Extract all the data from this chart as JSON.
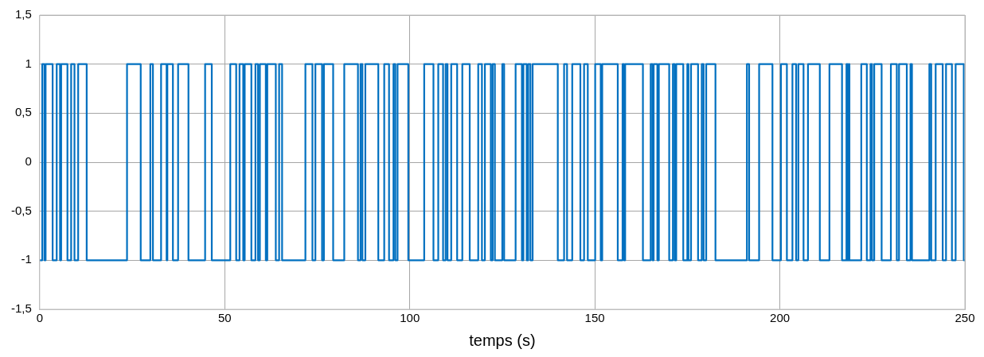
{
  "chart_data": {
    "type": "step",
    "xlabel": "temps (s)",
    "x": [
      0,
      0.7,
      1.3,
      1.6,
      3.5,
      4.6,
      5.5,
      5.8,
      7.5,
      8.5,
      9.4,
      10.4,
      12.7,
      23.6,
      27.3,
      29.9,
      30.6,
      32.8,
      34.3,
      34.5,
      36.0,
      37.4,
      40.2,
      44.7,
      46.5,
      51.5,
      53.1,
      54.0,
      55.0,
      55.4,
      57.2,
      58.3,
      59.0,
      59.5,
      61.1,
      61.5,
      63.8,
      64.7,
      65.5,
      71.8,
      73.7,
      74.5,
      76.3,
      76.8,
      79.3,
      82.3,
      86.0,
      86.7,
      87.2,
      88.0,
      91.5,
      93.1,
      94.4,
      95.6,
      96.1,
      96.7,
      99.6,
      103.9,
      106.4,
      107.7,
      109.0,
      109.7,
      110.2,
      111.2,
      112.8,
      114.2,
      116.2,
      118.5,
      119.5,
      120.3,
      121.9,
      122.4,
      123.0,
      125.0,
      125.5,
      128.6,
      130.3,
      130.7,
      131.6,
      132.0,
      132.6,
      133.2,
      140.0,
      141.7,
      142.5,
      143.9,
      146.1,
      147.1,
      148.1,
      150.1,
      151.6,
      152.0,
      156.2,
      157.5,
      157.9,
      158.2,
      163.0,
      165.1,
      165.6,
      165.9,
      166.9,
      167.3,
      170.1,
      171.1,
      171.6,
      172.0,
      173.9,
      175.0,
      175.3,
      176.0,
      177.9,
      178.9,
      179.4,
      180.1,
      182.6,
      191.1,
      191.7,
      194.4,
      198.0,
      200.3,
      201.9,
      203.4,
      204.4,
      205.0,
      206.4,
      207.6,
      210.8,
      213.4,
      216.8,
      218.0,
      218.3,
      218.6,
      218.8,
      222.0,
      223.5,
      224.5,
      224.9,
      225.5,
      227.5,
      230.0,
      231.6,
      232.2,
      234.3,
      235.3,
      235.7,
      240.4,
      240.9,
      242.1,
      244.0,
      244.9,
      246.5,
      247.5,
      249.7,
      250
    ],
    "values": [
      -1,
      1,
      -1,
      1,
      -1,
      1,
      -1,
      1,
      -1,
      1,
      -1,
      1,
      -1,
      1,
      -1,
      1,
      -1,
      1,
      -1,
      1,
      -1,
      1,
      -1,
      1,
      -1,
      1,
      -1,
      1,
      -1,
      1,
      -1,
      1,
      -1,
      1,
      -1,
      1,
      -1,
      1,
      -1,
      1,
      -1,
      1,
      -1,
      1,
      -1,
      1,
      -1,
      1,
      -1,
      1,
      -1,
      1,
      -1,
      1,
      -1,
      1,
      -1,
      1,
      -1,
      1,
      -1,
      1,
      -1,
      1,
      -1,
      1,
      -1,
      1,
      -1,
      1,
      -1,
      1,
      -1,
      1,
      -1,
      1,
      -1,
      1,
      -1,
      1,
      -1,
      1,
      -1,
      1,
      -1,
      1,
      -1,
      1,
      -1,
      1,
      -1,
      1,
      -1,
      1,
      -1,
      1,
      -1,
      1,
      -1,
      1,
      -1,
      1,
      -1,
      1,
      -1,
      1,
      -1,
      1,
      -1,
      1,
      -1,
      1,
      -1,
      1,
      -1,
      1,
      -1,
      1,
      -1,
      1,
      -1,
      1,
      -1,
      1,
      -1,
      1,
      -1,
      1,
      -1,
      1,
      -1,
      1,
      -1,
      1,
      -1,
      1,
      -1,
      1,
      -1,
      1,
      -1,
      1,
      -1,
      1,
      -1,
      1,
      -1,
      1,
      -1,
      1,
      -1,
      1,
      -1,
      -1
    ],
    "color": "#0070c0",
    "xlim": [
      0,
      250
    ],
    "xticks": [
      0,
      50,
      100,
      150,
      200,
      250
    ],
    "ylim": [
      -1.5,
      1.5
    ],
    "yticks": [
      {
        "value": -1.5,
        "label": "-1,5"
      },
      -1,
      {
        "value": -0.5,
        "label": "-0,5"
      },
      0,
      {
        "value": 0.5,
        "label": "0,5"
      },
      1,
      {
        "value": 1.5,
        "label": "1,5"
      }
    ],
    "grid": true
  }
}
